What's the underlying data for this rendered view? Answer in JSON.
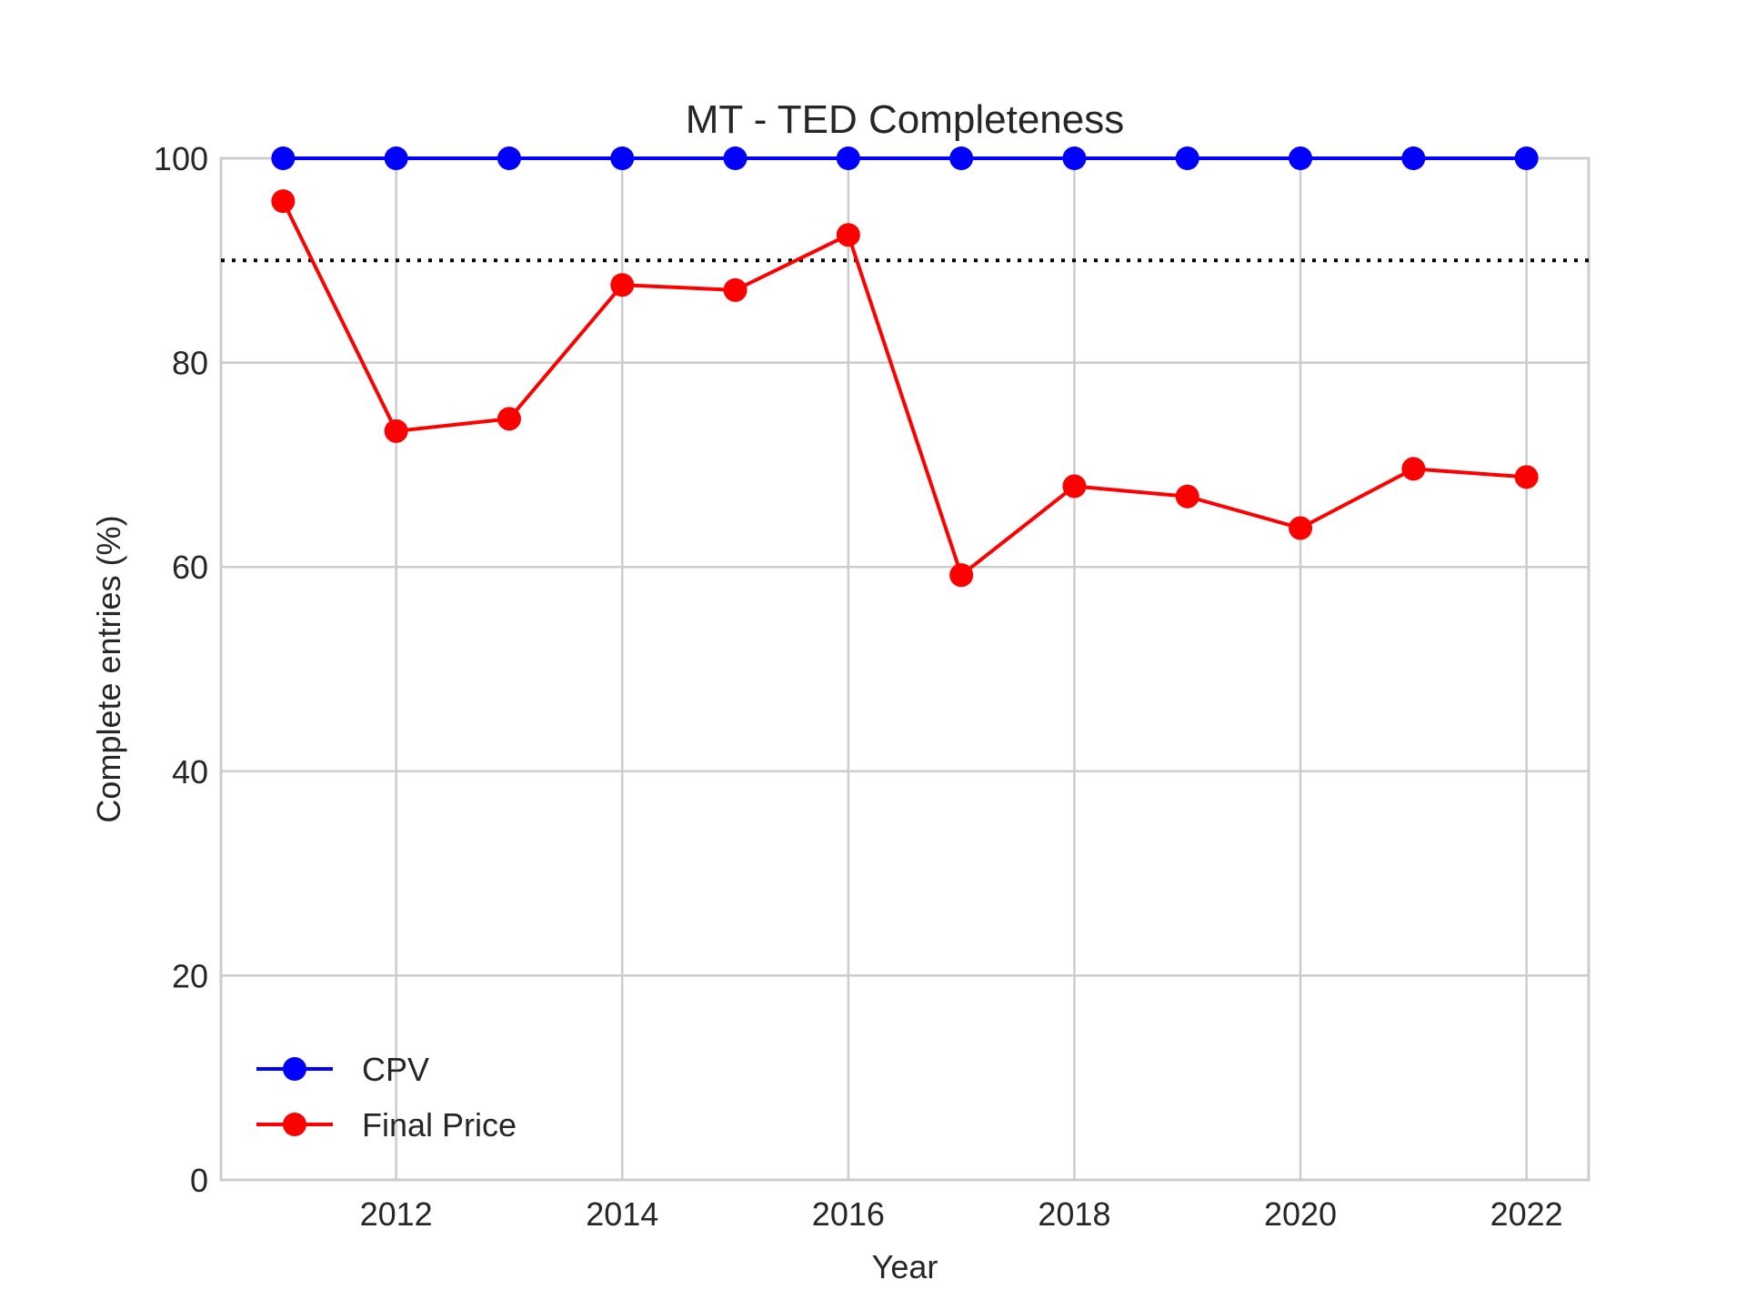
{
  "chart_data": {
    "type": "line",
    "title": "MT - TED Completeness",
    "xlabel": "Year",
    "ylabel": "Complete entries (%)",
    "x": [
      2011,
      2012,
      2013,
      2014,
      2015,
      2016,
      2017,
      2018,
      2019,
      2020,
      2021,
      2022
    ],
    "xlim": [
      2010.45,
      2022.55
    ],
    "ylim": [
      0,
      100
    ],
    "xticks": [
      2012,
      2014,
      2016,
      2018,
      2020,
      2022
    ],
    "yticks": [
      0,
      20,
      40,
      60,
      80,
      100
    ],
    "grid": true,
    "legend_position": "lower-left",
    "series": [
      {
        "name": "CPV",
        "color": "#0000ff",
        "values": [
          100,
          100,
          100,
          100,
          100,
          100,
          100,
          100,
          100,
          100,
          100,
          100
        ]
      },
      {
        "name": "Final Price",
        "color": "#ff0000",
        "values": [
          95.8,
          73.3,
          74.5,
          87.6,
          87.1,
          92.5,
          59.2,
          67.9,
          66.9,
          63.8,
          69.6,
          68.8
        ]
      }
    ],
    "reference_line": {
      "y": 90,
      "style": "dotted",
      "color": "#000000"
    }
  }
}
